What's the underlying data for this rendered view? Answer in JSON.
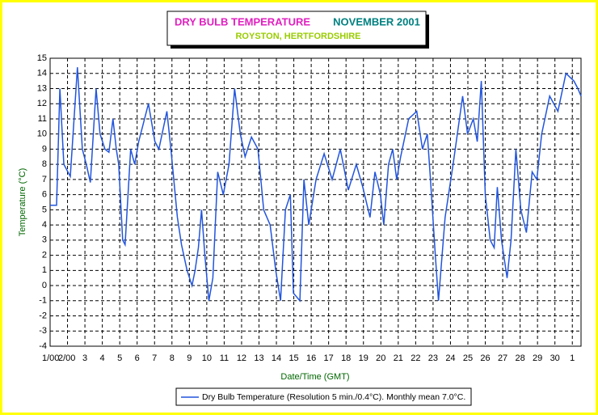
{
  "chart_data": {
    "type": "line",
    "title": "DRY BULB TEMPERATURE",
    "title_month": "NOVEMBER 2001",
    "subtitle": "ROYSTON, HERTFORDSHIRE",
    "x_label": "Date/Time (GMT)",
    "y_label": "Temperature (°C)",
    "xlim": [
      1,
      31.5
    ],
    "ylim": [
      -4,
      15
    ],
    "xticks": [
      {
        "value": 1,
        "label": "1/00"
      },
      {
        "value": 2,
        "label": "2/00"
      },
      3,
      4,
      5,
      6,
      7,
      8,
      9,
      10,
      11,
      12,
      13,
      14,
      15,
      16,
      17,
      18,
      19,
      20,
      21,
      22,
      23,
      24,
      25,
      26,
      27,
      28,
      29,
      30,
      {
        "value": 31,
        "label": "1"
      }
    ],
    "yticks": [
      -4,
      -3,
      -2,
      -1,
      0,
      1,
      2,
      3,
      4,
      5,
      6,
      7,
      8,
      9,
      10,
      11,
      12,
      13,
      14,
      15
    ],
    "grid": true,
    "series": [
      {
        "name": "Dry Bulb Temperature (Resolution 5 min./0.4°C). Monthly mean 7.0°C.",
        "color": "#2255dd",
        "x": [
          1.0,
          1.37,
          1.56,
          1.79,
          2.16,
          2.57,
          2.85,
          3.08,
          3.31,
          3.64,
          3.87,
          4.15,
          4.38,
          4.61,
          4.8,
          4.94,
          5.17,
          5.31,
          5.63,
          5.86,
          6.09,
          6.65,
          7.02,
          7.25,
          7.71,
          7.94,
          8.31,
          8.55,
          8.87,
          9.15,
          9.33,
          9.52,
          9.7,
          9.89,
          10.12,
          10.35,
          10.63,
          10.95,
          11.28,
          11.6,
          11.93,
          12.2,
          12.57,
          12.94,
          13.27,
          13.64,
          13.96,
          14.24,
          14.52,
          14.8,
          14.98,
          15.35,
          15.58,
          15.86,
          16.28,
          16.74,
          17.2,
          17.67,
          18.13,
          18.59,
          18.96,
          19.38,
          19.66,
          19.98,
          20.17,
          20.44,
          20.68,
          20.91,
          21.14,
          21.6,
          22.06,
          22.39,
          22.67,
          22.85,
          23.13,
          23.31,
          23.69,
          24.15,
          24.7,
          24.98,
          25.31,
          25.54,
          25.77,
          26.0,
          26.28,
          26.51,
          26.69,
          26.93,
          27.25,
          27.48,
          27.76,
          28.04,
          28.36,
          28.69,
          28.96,
          29.24,
          29.7,
          30.17,
          30.63,
          31.09,
          31.32,
          31.5
        ],
        "values": [
          5.3,
          5.3,
          13,
          8,
          7.2,
          14.4,
          9,
          8,
          6.8,
          13,
          10,
          9,
          8.8,
          11,
          9,
          8,
          3,
          2.7,
          9,
          8,
          9.5,
          12,
          9.5,
          9,
          11.5,
          9,
          4.5,
          2.7,
          1,
          0,
          1,
          2.5,
          5,
          2,
          -1,
          0.5,
          7.5,
          6,
          8,
          13,
          10,
          8.5,
          9.8,
          9,
          5,
          4,
          1,
          -1,
          5,
          6,
          -0.5,
          -1,
          7,
          4,
          7,
          8.7,
          7,
          9,
          6.3,
          8,
          6.5,
          4.5,
          7.5,
          6,
          4,
          8,
          9,
          7,
          8.5,
          11,
          11.5,
          9,
          10,
          7,
          2,
          -1,
          4.5,
          8,
          12.5,
          10,
          11,
          9.5,
          13.5,
          6,
          3,
          2.5,
          6.5,
          3,
          0.5,
          3,
          9,
          5,
          3.5,
          7.5,
          7,
          10,
          12.5,
          11.5,
          14,
          13.5,
          13,
          12.5
        ]
      }
    ]
  }
}
